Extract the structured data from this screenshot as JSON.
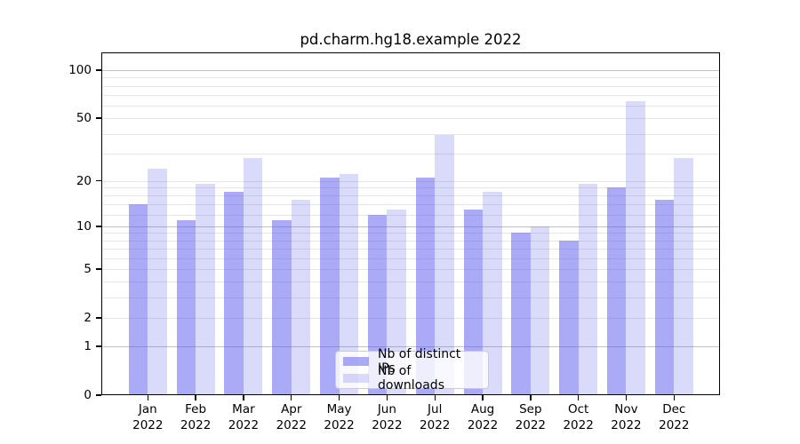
{
  "figure": {
    "title": "pd.charm.hg18.example 2022"
  },
  "chart_data": {
    "type": "bar",
    "title": "pd.charm.hg18.example 2022",
    "categories": [
      "Jan 2022",
      "Feb 2022",
      "Mar 2022",
      "Apr 2022",
      "May 2022",
      "Jun 2022",
      "Jul 2022",
      "Aug 2022",
      "Sep 2022",
      "Oct 2022",
      "Nov 2022",
      "Dec 2022"
    ],
    "x_tick_month": [
      "Jan",
      "Feb",
      "Mar",
      "Apr",
      "May",
      "Jun",
      "Jul",
      "Aug",
      "Sep",
      "Oct",
      "Nov",
      "Dec"
    ],
    "x_tick_year": "2022",
    "series": [
      {
        "name": "Nb of distinct IPs",
        "values": [
          14,
          11,
          17,
          11,
          21,
          12,
          21,
          13,
          9,
          8,
          18,
          15
        ],
        "color": "rgba(85,85,238,0.5)"
      },
      {
        "name": "Nb of downloads",
        "values": [
          24,
          19,
          28,
          15,
          22,
          13,
          39,
          17,
          10,
          19,
          64,
          28
        ],
        "color": "rgba(85,85,238,0.22)"
      }
    ],
    "xlabel": "",
    "ylabel": "",
    "yscale": "log1p",
    "ylim": [
      0,
      123
    ],
    "ytick_values": [
      100,
      50,
      20,
      10,
      5,
      2,
      1,
      0
    ],
    "ytick_labels": [
      "100",
      "50",
      "20",
      "10",
      "5",
      "2",
      "1",
      "0"
    ],
    "grid": "on",
    "grid_minor_values": [
      2,
      3,
      4,
      5,
      6,
      7,
      8,
      9,
      12,
      14,
      16,
      18,
      20,
      30,
      40,
      50,
      60,
      70,
      80,
      90
    ],
    "grid_decade_values": [
      1,
      10,
      100
    ],
    "legend_position": "inside lower center",
    "colors": {
      "bar_dark": "rgba(85,85,238,0.5)",
      "bar_light": "rgba(85,85,238,0.22)",
      "grid_minor": "#e6e6e6",
      "grid_decade": "#c2c2c2",
      "spine": "#000000",
      "background": "#ffffff"
    }
  }
}
